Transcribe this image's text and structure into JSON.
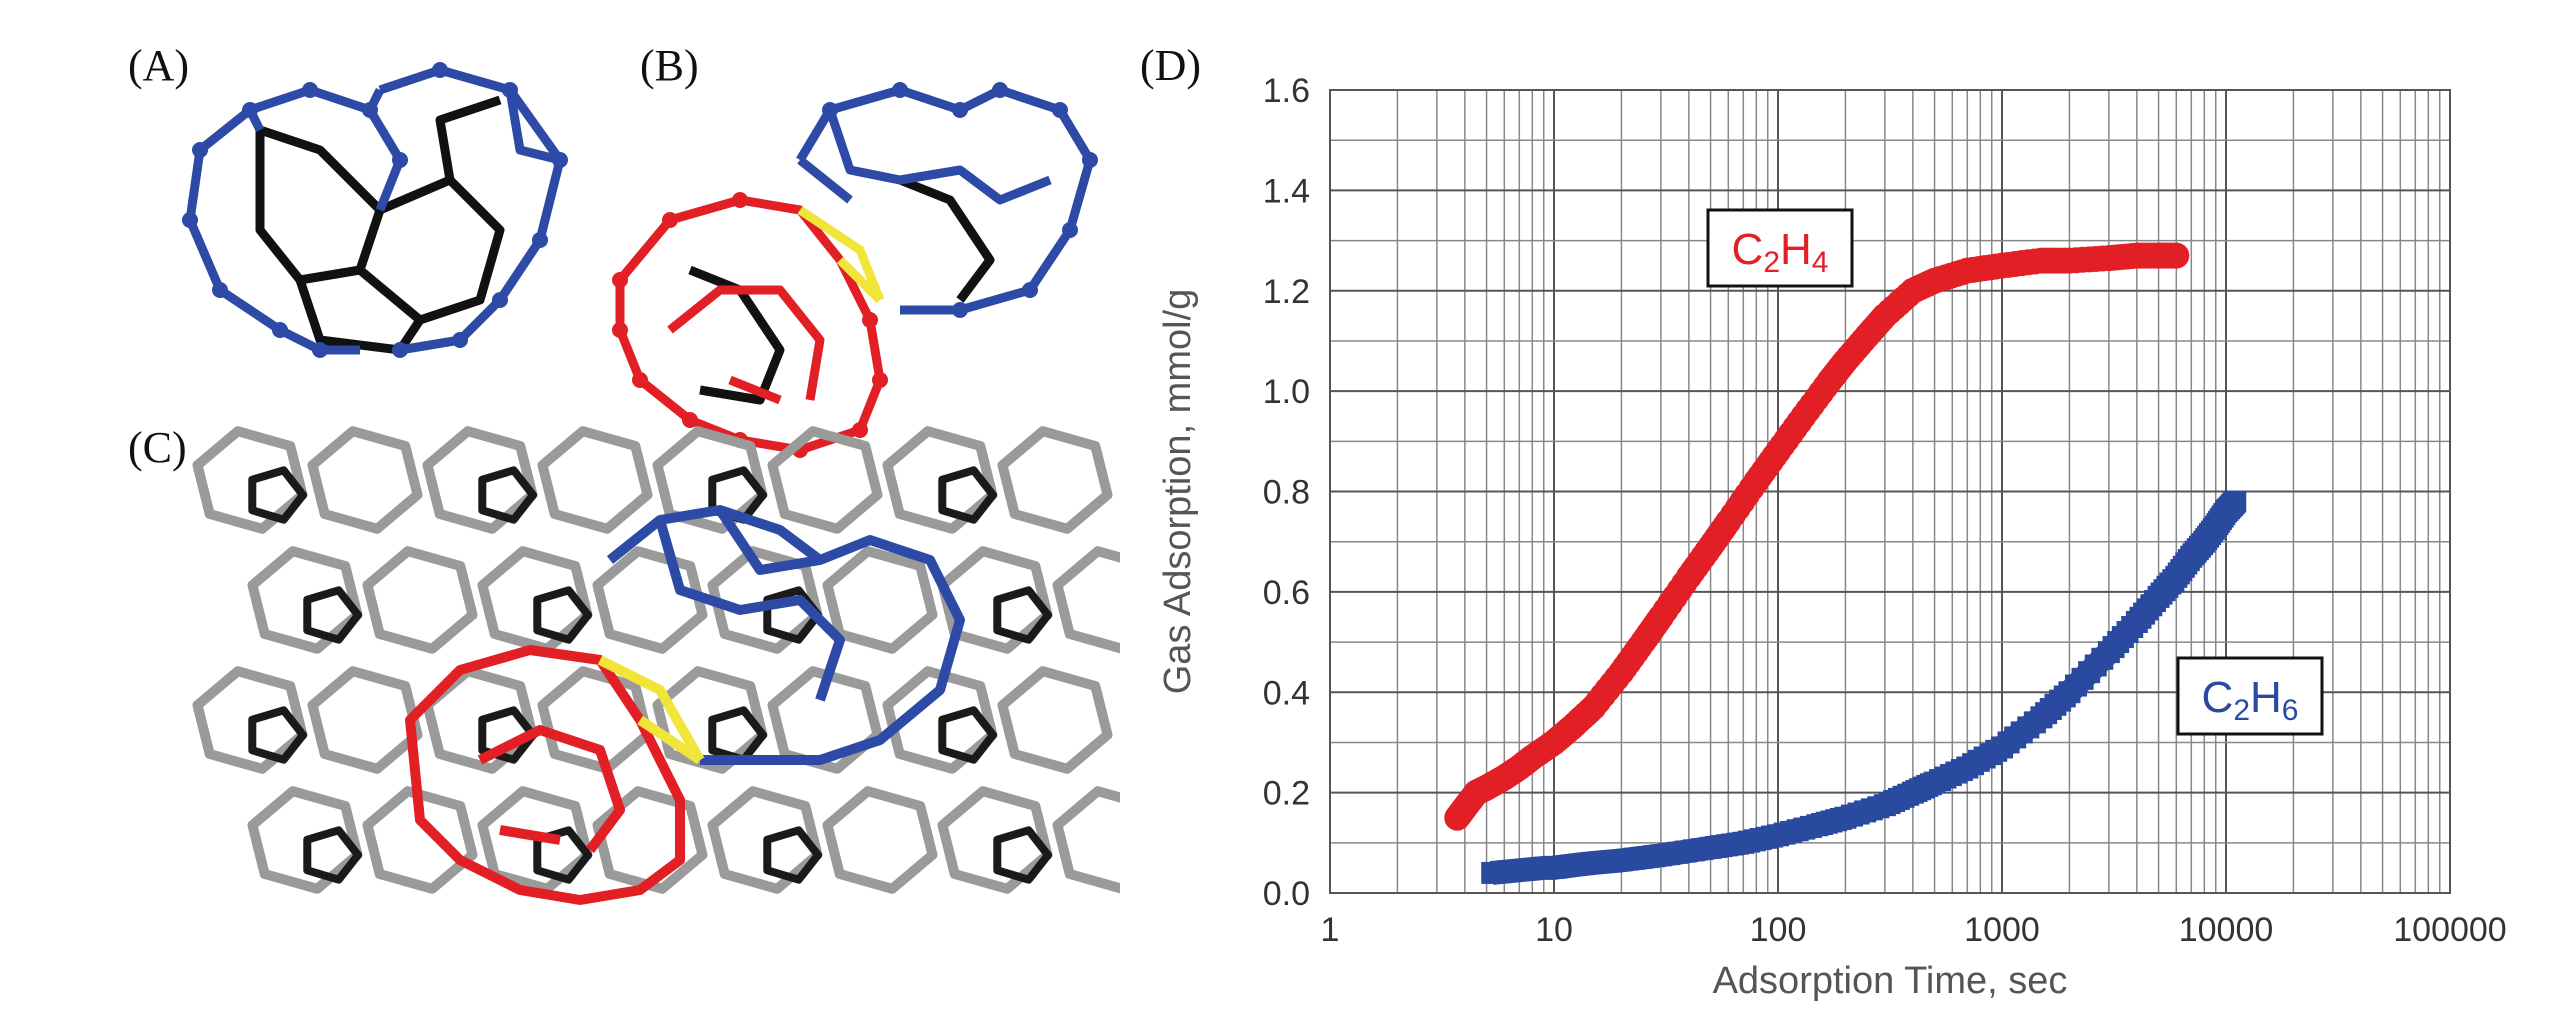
{
  "panels": {
    "a": "(A)",
    "b": "(B)",
    "c": "(C)",
    "d": "(D)"
  },
  "chart_data": {
    "type": "scatter",
    "title": "",
    "xlabel": "Adsorption Time, sec",
    "ylabel": "Gas Adsorption, mmol/g",
    "xscale": "log",
    "xlim": [
      1,
      100000
    ],
    "ylim": [
      0,
      1.6
    ],
    "x_ticks": [
      "1",
      "10",
      "100",
      "1000",
      "10000",
      "100000"
    ],
    "y_ticks": [
      "0.0",
      "0.2",
      "0.4",
      "0.6",
      "0.8",
      "1.0",
      "1.2",
      "1.4",
      "1.6"
    ],
    "grid": true,
    "series": [
      {
        "name": "C2H4",
        "label_main": "C",
        "label_sub1": "2",
        "label_mid": "H",
        "label_sub2": "4",
        "color": "#e31f26",
        "marker": "circle",
        "x": [
          3.7,
          4,
          4.5,
          5,
          6,
          7,
          8,
          10,
          12,
          15,
          20,
          25,
          30,
          40,
          50,
          60,
          80,
          100,
          130,
          170,
          200,
          250,
          300,
          400,
          500,
          700,
          1000,
          1500,
          2000,
          3000,
          4000,
          5000,
          6000
        ],
        "y": [
          0.15,
          0.17,
          0.2,
          0.21,
          0.23,
          0.25,
          0.27,
          0.3,
          0.33,
          0.37,
          0.44,
          0.5,
          0.55,
          0.63,
          0.69,
          0.74,
          0.82,
          0.88,
          0.95,
          1.02,
          1.06,
          1.11,
          1.15,
          1.2,
          1.22,
          1.24,
          1.25,
          1.26,
          1.26,
          1.265,
          1.27,
          1.27,
          1.27
        ]
      },
      {
        "name": "C2H6",
        "label_main": "C",
        "label_sub1": "2",
        "label_mid": "H",
        "label_sub2": "6",
        "color": "#2a4aa0",
        "marker": "square",
        "x": [
          5.3,
          9,
          10,
          12,
          15,
          20,
          30,
          50,
          70,
          100,
          150,
          200,
          300,
          400,
          500,
          700,
          1000,
          1500,
          2000,
          3000,
          4000,
          5000,
          6000,
          7000,
          8000,
          9000,
          10000,
          11000
        ],
        "y": [
          0.04,
          0.05,
          0.05,
          0.055,
          0.06,
          0.065,
          0.075,
          0.09,
          0.1,
          0.115,
          0.135,
          0.15,
          0.175,
          0.2,
          0.22,
          0.25,
          0.29,
          0.35,
          0.4,
          0.48,
          0.54,
          0.59,
          0.63,
          0.67,
          0.7,
          0.73,
          0.76,
          0.78
        ]
      }
    ]
  }
}
